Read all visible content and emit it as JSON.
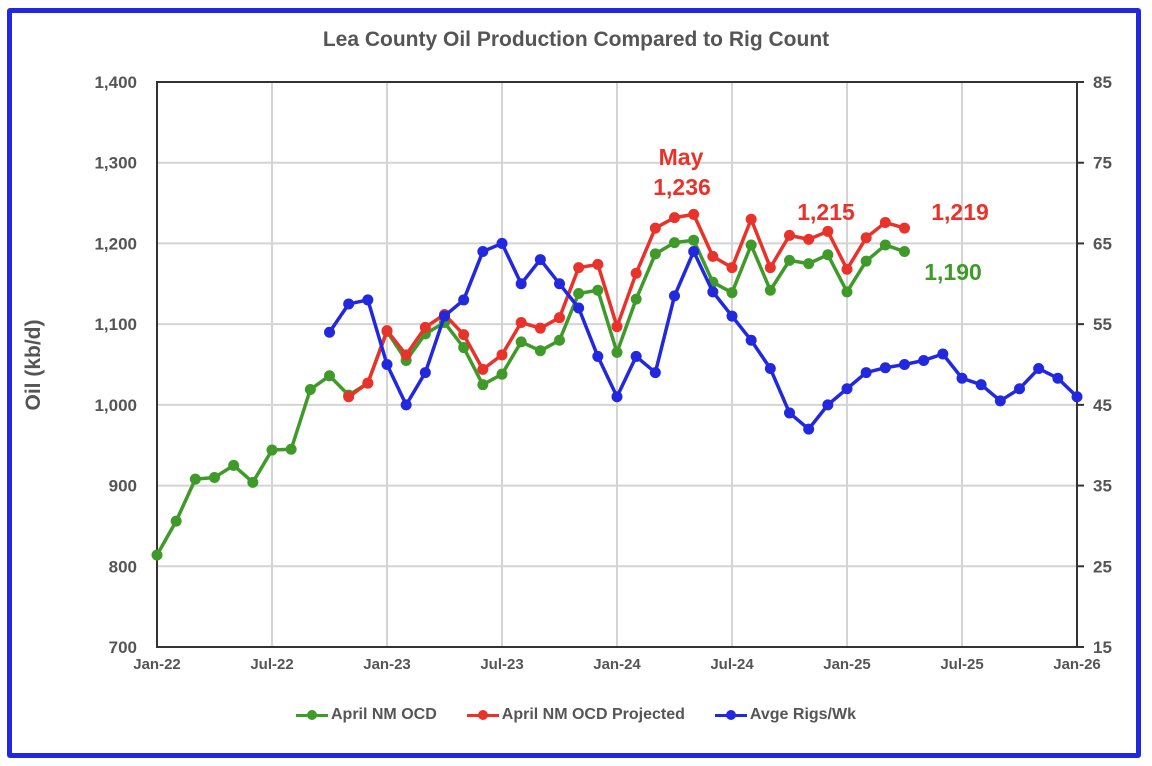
{
  "chart_data": {
    "type": "line",
    "title": "Lea County Oil Production Compared to Rig Count",
    "xlabel": "",
    "ylabel": "Oil (kb/d)",
    "y2label": "",
    "ylim": [
      700,
      1400
    ],
    "y2lim": [
      15,
      85
    ],
    "yticks": [
      "700",
      "800",
      "900",
      "1,000",
      "1,100",
      "1,200",
      "1,300",
      "1,400"
    ],
    "y2ticks": [
      "15",
      "25",
      "35",
      "45",
      "55",
      "65",
      "75",
      "85"
    ],
    "xticks": [
      "Jan-22",
      "Jul-22",
      "Jan-23",
      "Jul-23",
      "Jan-24",
      "Jul-24",
      "Jan-25",
      "Jul-25",
      "Jan-26"
    ],
    "x_start": "Jan-22",
    "x_months_total": 48,
    "grid": true,
    "legend_position": "bottom",
    "series": [
      {
        "name": "April NM OCD",
        "color": "#3f9a2a",
        "axis": "left",
        "start_month_index": 0,
        "values": [
          814,
          856,
          908,
          910,
          925,
          904,
          944,
          945,
          1019,
          1036,
          1012,
          1027,
          1091,
          1055,
          1088,
          1102,
          1071,
          1025,
          1038,
          1078,
          1067,
          1080,
          1138,
          1142,
          1065,
          1131,
          1187,
          1201,
          1204,
          1152,
          1139,
          1198,
          1142,
          1179,
          1175,
          1186,
          1140,
          1178,
          1198,
          1190
        ]
      },
      {
        "name": "April NM OCD Projected",
        "color": "#e8322a",
        "axis": "left",
        "start_month_index": 10,
        "values": [
          1010,
          1027,
          1092,
          1062,
          1096,
          1112,
          1087,
          1044,
          1062,
          1102,
          1095,
          1108,
          1170,
          1174,
          1097,
          1163,
          1219,
          1232,
          1236,
          1184,
          1170,
          1230,
          1170,
          1210,
          1205,
          1215,
          1168,
          1207,
          1226,
          1219
        ]
      },
      {
        "name": "Avge Rigs/Wk",
        "color": "#2228dd",
        "axis": "right",
        "start_month_index": 9,
        "values": [
          54,
          57.5,
          58,
          50,
          45,
          49,
          56,
          58,
          64,
          65,
          60,
          63,
          60,
          57,
          51,
          46,
          51,
          49,
          58.5,
          64,
          59,
          56,
          53,
          49.5,
          44,
          42,
          45,
          47,
          49,
          49.6,
          50,
          50.5,
          51.3,
          48.3,
          47.5,
          45.5,
          47,
          49.5,
          48.3,
          46
        ]
      }
    ],
    "annotations": [
      {
        "text": "May",
        "color": "#e8322a"
      },
      {
        "text": "1,236",
        "color": "#e8322a"
      },
      {
        "text": "1,215",
        "color": "#e8322a"
      },
      {
        "text": "1,219",
        "color": "#e8322a"
      },
      {
        "text": "1,190",
        "color": "#3f9a2a"
      }
    ]
  }
}
